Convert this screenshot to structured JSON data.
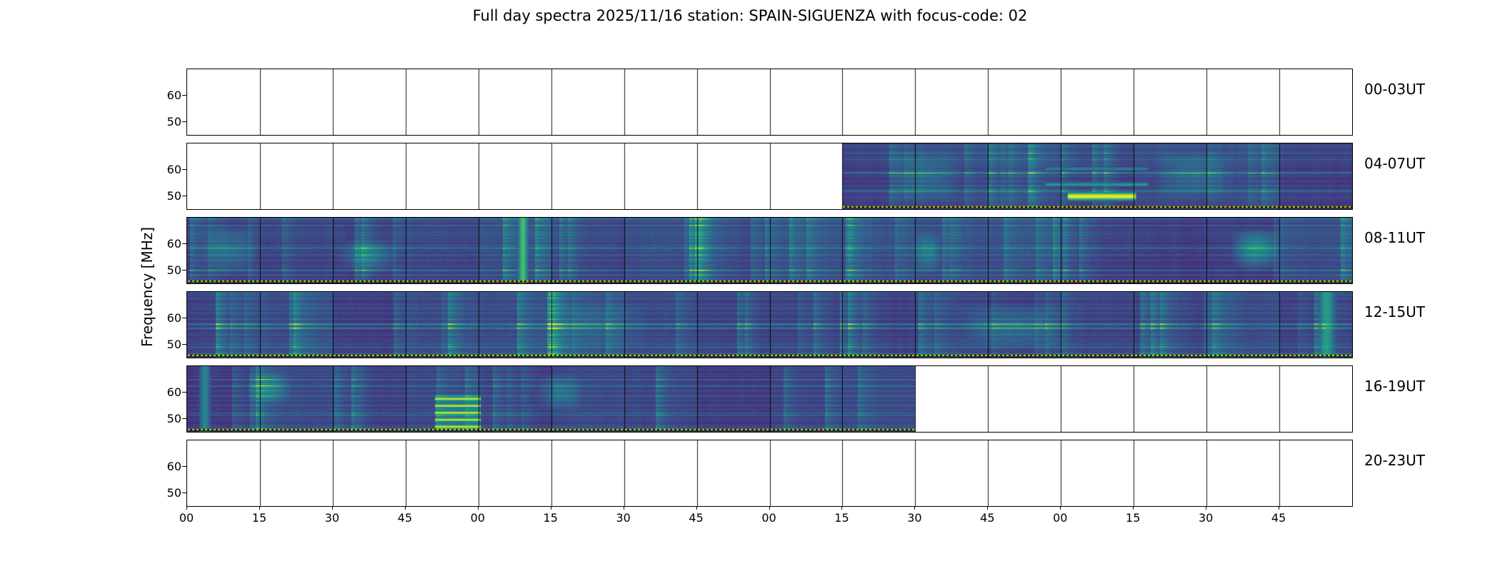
{
  "chart_data": {
    "type": "heatmap",
    "title": "Full day spectra 2025/11/16 station: SPAIN-SIGUENZA with focus-code: 02",
    "ylabel": "Frequency [MHz]",
    "y_range": [
      45,
      70
    ],
    "y_ticks": [
      "60",
      "50"
    ],
    "x_tick_labels": [
      "00",
      "15",
      "30",
      "45",
      "00",
      "15",
      "30",
      "45",
      "00",
      "15",
      "30",
      "45",
      "00",
      "15",
      "30",
      "45"
    ],
    "segments_per_row": 16,
    "hours_per_row": 4,
    "colormap": "viridis",
    "marker_line_color": "#d8d800",
    "rows": [
      {
        "label": "00-03UT",
        "has_data": false,
        "coverage": [
          0,
          0
        ],
        "seed": 7,
        "amp": 1.0,
        "features": []
      },
      {
        "label": "04-07UT",
        "has_data": true,
        "coverage": [
          0.5625,
          1.0
        ],
        "seed": 11,
        "amp": 1.0,
        "features": [
          {
            "kind": "hband",
            "x0": 0.755,
            "x1": 0.815,
            "y": 0.8,
            "h": 0.09,
            "peak": 1.0
          },
          {
            "kind": "hband",
            "x0": 0.735,
            "x1": 0.825,
            "y": 0.62,
            "h": 0.05,
            "peak": 0.55
          },
          {
            "kind": "hband",
            "x0": 0.735,
            "x1": 0.825,
            "y": 0.38,
            "h": 0.045,
            "peak": 0.45
          },
          {
            "kind": "blob",
            "x0": 0.6,
            "x1": 0.665,
            "y0": 0.05,
            "y1": 0.95,
            "amp": 0.2
          },
          {
            "kind": "blob",
            "x0": 0.83,
            "x1": 0.9,
            "y0": 0.1,
            "y1": 0.85,
            "amp": 0.2
          }
        ]
      },
      {
        "label": "08-11UT",
        "has_data": true,
        "coverage": [
          0,
          1
        ],
        "seed": 23,
        "amp": 1.08,
        "features": [
          {
            "kind": "vline",
            "x": 0.288,
            "peak": 0.82,
            "w": 0.0035
          },
          {
            "kind": "blob",
            "x0": 0.895,
            "x1": 0.94,
            "y0": 0.15,
            "y1": 0.8,
            "amp": 0.45
          },
          {
            "kind": "blob",
            "x0": 0.012,
            "x1": 0.06,
            "y0": 0.1,
            "y1": 0.9,
            "amp": 0.25
          },
          {
            "kind": "blob",
            "x0": 0.13,
            "x1": 0.18,
            "y0": 0.3,
            "y1": 0.85,
            "amp": 0.3
          },
          {
            "kind": "blob",
            "x0": 0.622,
            "x1": 0.648,
            "y0": 0.2,
            "y1": 0.85,
            "amp": 0.3
          }
        ]
      },
      {
        "label": "12-15UT",
        "has_data": true,
        "coverage": [
          0,
          1
        ],
        "seed": 37,
        "amp": 1.05,
        "features": [
          {
            "kind": "vline",
            "x": 0.978,
            "peak": 0.65,
            "w": 0.006
          },
          {
            "kind": "blob",
            "x0": 0.66,
            "x1": 0.76,
            "y0": 0.15,
            "y1": 0.9,
            "amp": 0.25
          },
          {
            "kind": "blob",
            "x0": 0.3,
            "x1": 0.4,
            "y0": 0.1,
            "y1": 0.9,
            "amp": 0.12
          }
        ]
      },
      {
        "label": "16-19UT",
        "has_data": true,
        "coverage": [
          0,
          0.625
        ],
        "seed": 53,
        "amp": 1.0,
        "features": [
          {
            "kind": "stripes",
            "x0": 0.213,
            "x1": 0.252,
            "y0": 0.44,
            "y1": 0.97,
            "count": 5,
            "peak": 0.97
          },
          {
            "kind": "vline",
            "x": 0.015,
            "peak": 0.55,
            "w": 0.004
          },
          {
            "kind": "blob",
            "x0": 0.05,
            "x1": 0.09,
            "y0": 0.05,
            "y1": 0.6,
            "amp": 0.3
          },
          {
            "kind": "blob",
            "x0": 0.3,
            "x1": 0.34,
            "y0": 0.1,
            "y1": 0.7,
            "amp": 0.25
          }
        ]
      },
      {
        "label": "20-23UT",
        "has_data": false,
        "coverage": [
          0,
          0
        ],
        "seed": 3,
        "amp": 1.0,
        "features": []
      }
    ]
  }
}
